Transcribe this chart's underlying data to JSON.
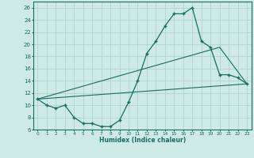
{
  "xlabel": "Humidex (Indice chaleur)",
  "bg_color": "#ceeae6",
  "grid_color": "#aed4cf",
  "line_color": "#1a6b60",
  "xlim": [
    -0.5,
    23.5
  ],
  "ylim": [
    6,
    27
  ],
  "xticks": [
    0,
    1,
    2,
    3,
    4,
    5,
    6,
    7,
    8,
    9,
    10,
    11,
    12,
    13,
    14,
    15,
    16,
    17,
    18,
    19,
    20,
    21,
    22,
    23
  ],
  "yticks": [
    6,
    8,
    10,
    12,
    14,
    16,
    18,
    20,
    22,
    24,
    26
  ],
  "series1_x": [
    0,
    1,
    2,
    3,
    4,
    5,
    6,
    7,
    8,
    9,
    10,
    11,
    12,
    13,
    14,
    15,
    16,
    17,
    18,
    19,
    20,
    21,
    22,
    23
  ],
  "series1_y": [
    11,
    10,
    9.5,
    10,
    8,
    7,
    7,
    6.5,
    6.5,
    7.5,
    10.5,
    14,
    18.5,
    20.5,
    23,
    25,
    25,
    26,
    20.5,
    19.5,
    15,
    15,
    14.5,
    13.5
  ],
  "series2_x": [
    0,
    23
  ],
  "series2_y": [
    11,
    13.5
  ],
  "series3_x": [
    0,
    20,
    23
  ],
  "series3_y": [
    11,
    19.5,
    13.5
  ]
}
